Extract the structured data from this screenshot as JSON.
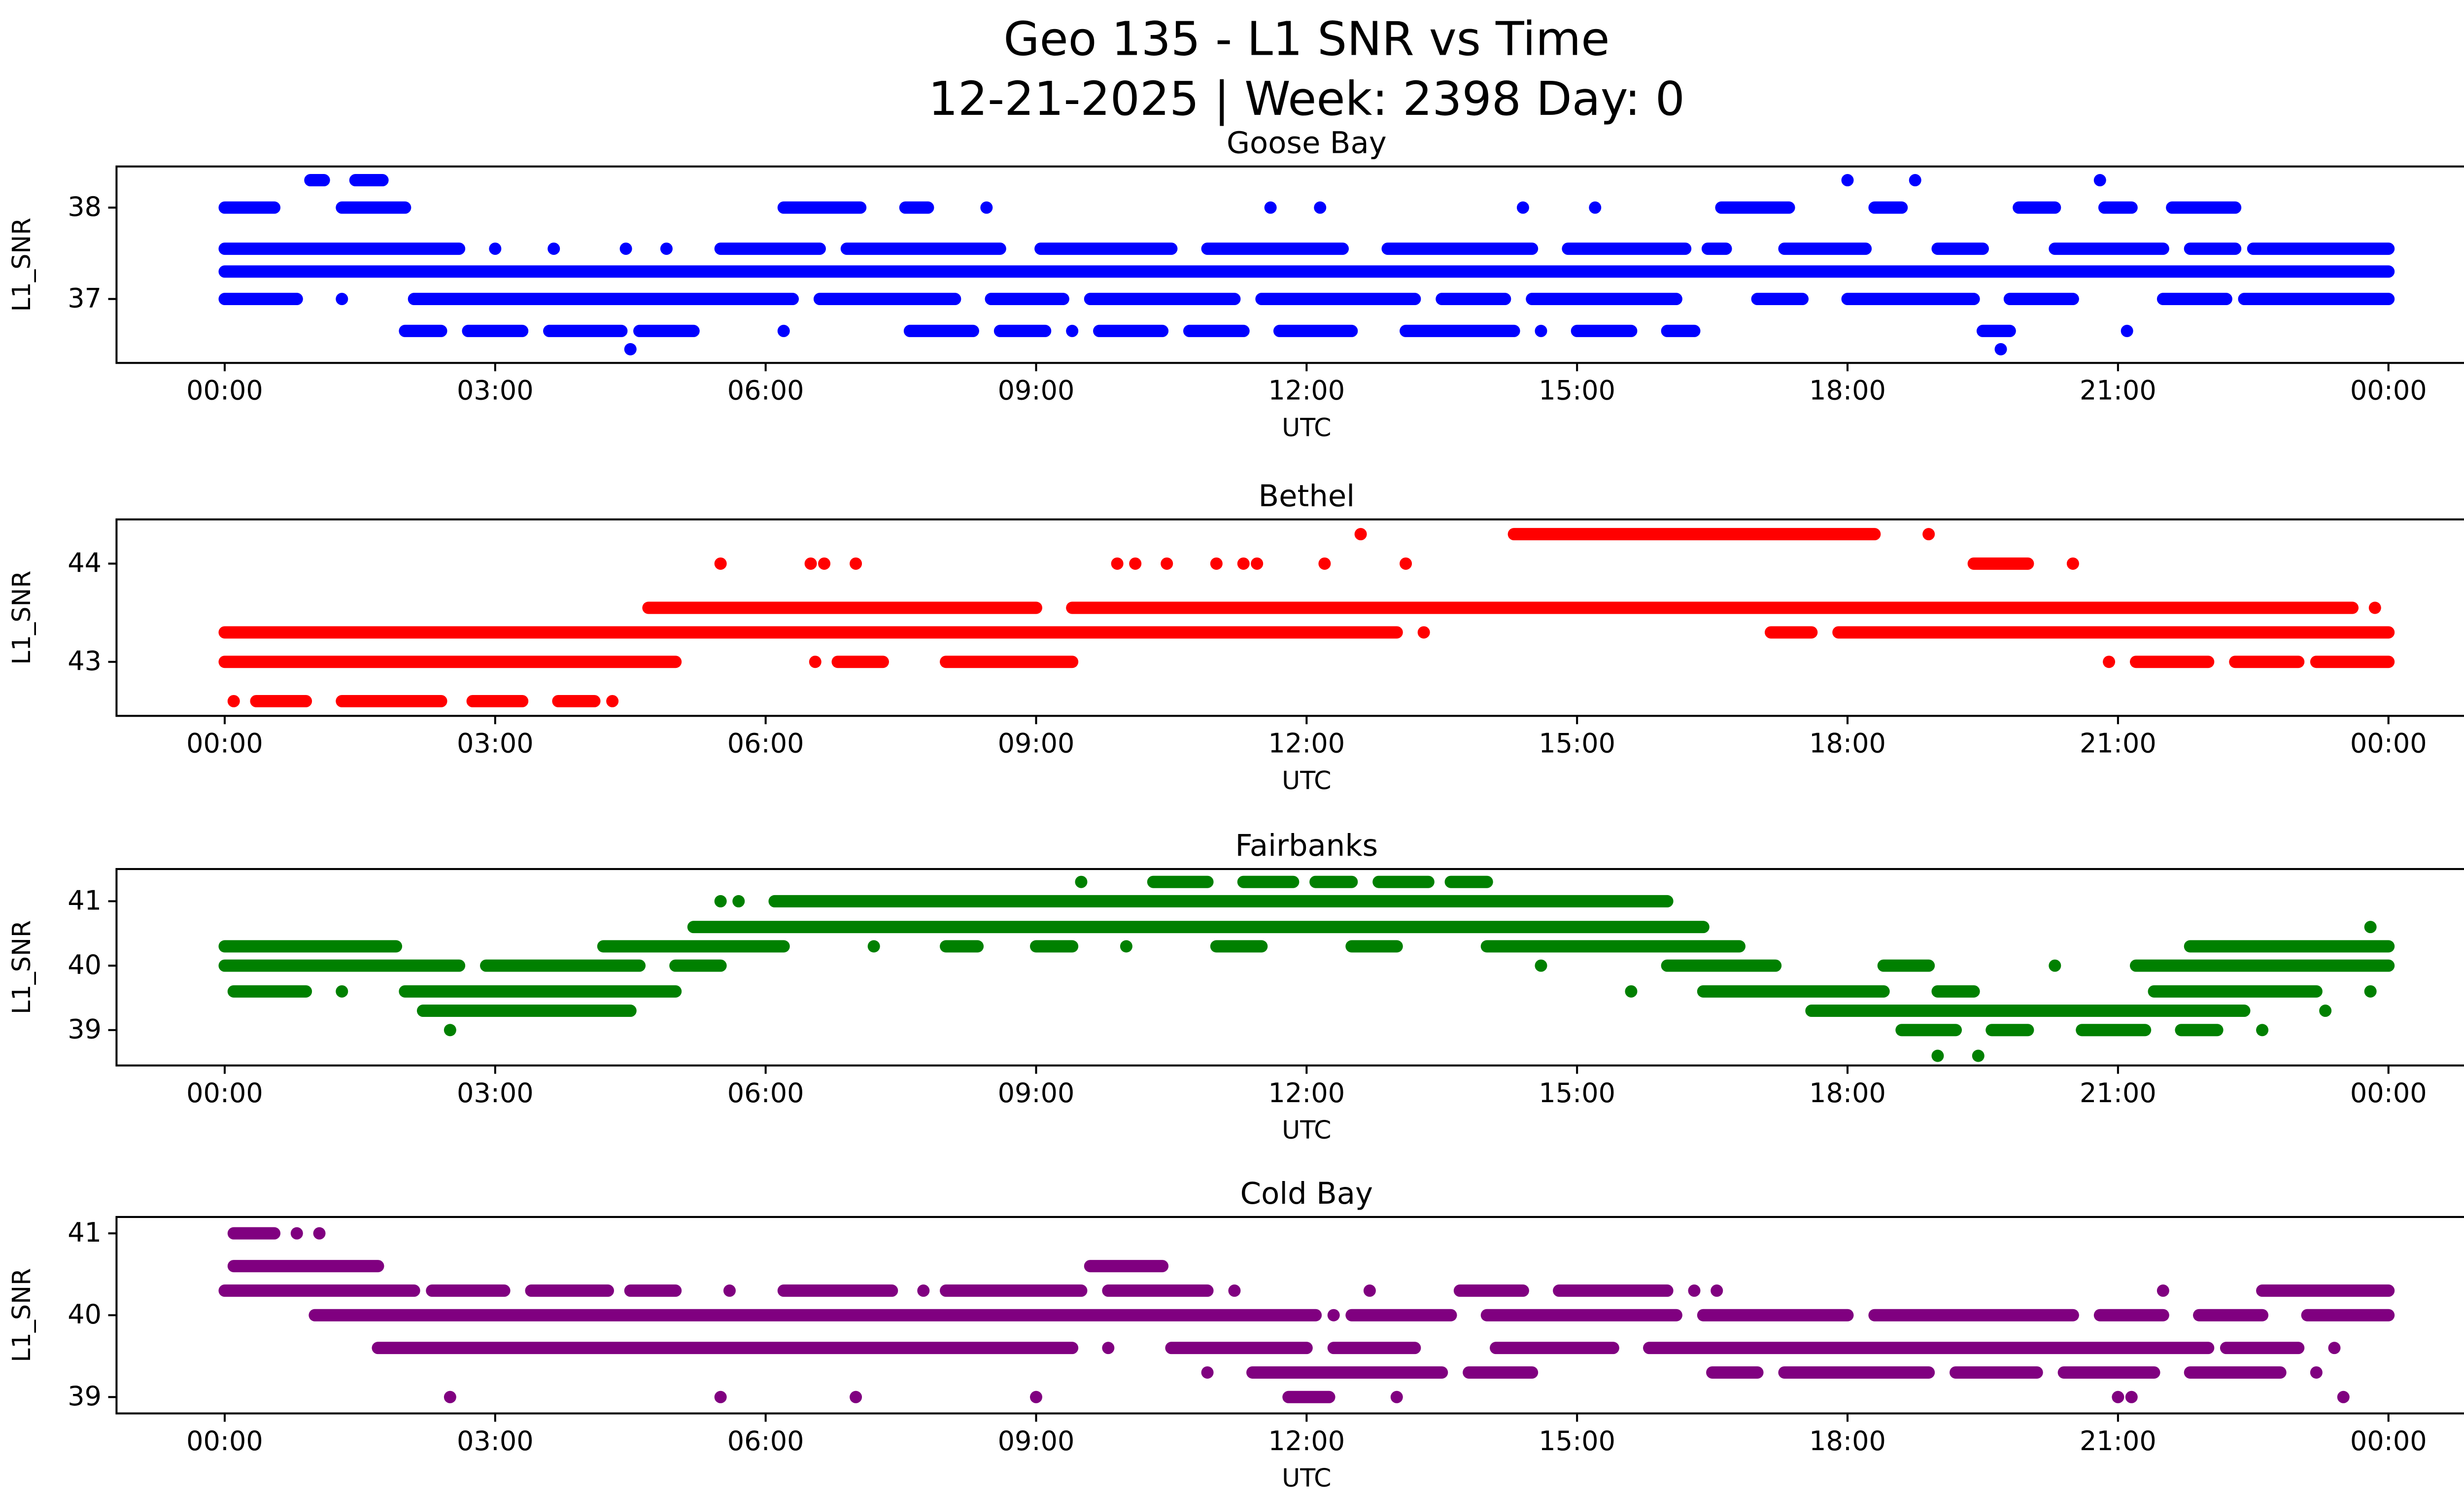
{
  "figure": {
    "title_line1": "Geo 135 - L1 SNR vs Time",
    "title_line2": "12-21-2025 | Week: 2398 Day: 0"
  },
  "chart_data": [
    {
      "type": "scatter",
      "title": "Goose Bay",
      "color": "#0000ff",
      "xlabel": "UTC",
      "ylabel": "L1_SNR",
      "xlim": [
        -1.2,
        25.2
      ],
      "ylim": [
        36.3,
        38.45
      ],
      "grid": false,
      "legend": "none",
      "xticks": {
        "hours": [
          0,
          3,
          6,
          9,
          12,
          15,
          18,
          21,
          24
        ],
        "labels": [
          "00:00",
          "03:00",
          "06:00",
          "09:00",
          "12:00",
          "15:00",
          "18:00",
          "21:00",
          "00:00"
        ]
      },
      "yticks": [
        37,
        38
      ],
      "bands": [
        {
          "y": 38.3,
          "segments": [
            [
              0.95,
              1.1
            ],
            [
              1.45,
              1.75
            ]
          ],
          "points": [
            18.0,
            18.75,
            20.8
          ]
        },
        {
          "y": 38.0,
          "segments": [
            [
              0.0,
              0.55
            ],
            [
              1.3,
              2.0
            ],
            [
              6.2,
              7.05
            ],
            [
              7.55,
              7.8
            ],
            [
              16.6,
              17.35
            ],
            [
              18.3,
              18.6
            ],
            [
              19.9,
              20.3
            ],
            [
              20.85,
              21.15
            ],
            [
              21.6,
              22.3
            ]
          ],
          "points": [
            8.45,
            11.6,
            12.15,
            14.4,
            15.2
          ]
        },
        {
          "y": 37.55,
          "segments": [
            [
              0.0,
              2.6
            ],
            [
              5.5,
              6.6
            ],
            [
              6.9,
              8.6
            ],
            [
              9.05,
              10.5
            ],
            [
              10.9,
              12.4
            ],
            [
              12.9,
              14.5
            ],
            [
              14.9,
              16.2
            ],
            [
              16.45,
              16.65
            ],
            [
              17.3,
              18.2
            ],
            [
              19.0,
              19.5
            ],
            [
              20.3,
              21.5
            ],
            [
              21.8,
              22.3
            ],
            [
              22.5,
              24.0
            ]
          ],
          "points": [
            3.0,
            3.65,
            4.45,
            4.9
          ]
        },
        {
          "y": 37.3,
          "segments": [
            [
              0.0,
              24.0
            ]
          ],
          "points": []
        },
        {
          "y": 37.0,
          "segments": [
            [
              0.0,
              0.8
            ],
            [
              2.1,
              6.3
            ],
            [
              6.6,
              8.1
            ],
            [
              8.5,
              9.3
            ],
            [
              9.6,
              11.2
            ],
            [
              11.5,
              13.2
            ],
            [
              13.5,
              14.2
            ],
            [
              14.5,
              16.1
            ],
            [
              17.0,
              17.5
            ],
            [
              18.0,
              19.4
            ],
            [
              19.8,
              20.5
            ],
            [
              21.5,
              22.2
            ],
            [
              22.4,
              24.0
            ]
          ],
          "points": [
            1.3
          ]
        },
        {
          "y": 36.65,
          "segments": [
            [
              2.0,
              2.4
            ],
            [
              2.7,
              3.3
            ],
            [
              3.6,
              4.4
            ],
            [
              4.6,
              5.2
            ],
            [
              7.6,
              8.3
            ],
            [
              8.6,
              9.1
            ],
            [
              9.7,
              10.4
            ],
            [
              10.7,
              11.3
            ],
            [
              11.7,
              12.5
            ],
            [
              13.1,
              14.3
            ],
            [
              15.0,
              15.6
            ],
            [
              16.0,
              16.3
            ],
            [
              19.5,
              19.8
            ]
          ],
          "points": [
            6.2,
            9.4,
            14.6,
            21.1
          ]
        },
        {
          "y": 36.45,
          "segments": [],
          "points": [
            4.5,
            19.7
          ]
        }
      ]
    },
    {
      "type": "scatter",
      "title": "Bethel",
      "color": "#ff0000",
      "xlabel": "UTC",
      "ylabel": "L1_SNR",
      "xlim": [
        -1.2,
        25.2
      ],
      "ylim": [
        42.45,
        44.45
      ],
      "grid": false,
      "legend": "none",
      "xticks": {
        "hours": [
          0,
          3,
          6,
          9,
          12,
          15,
          18,
          21,
          24
        ],
        "labels": [
          "00:00",
          "03:00",
          "06:00",
          "09:00",
          "12:00",
          "15:00",
          "18:00",
          "21:00",
          "00:00"
        ]
      },
      "yticks": [
        43,
        44
      ],
      "bands": [
        {
          "y": 44.3,
          "segments": [
            [
              14.3,
              18.3
            ]
          ],
          "points": [
            12.6,
            18.9
          ]
        },
        {
          "y": 44.0,
          "segments": [
            [
              19.4,
              20.0
            ]
          ],
          "points": [
            5.5,
            6.5,
            6.65,
            7.0,
            9.9,
            10.1,
            10.45,
            11.0,
            11.3,
            11.45,
            12.2,
            13.1,
            20.5
          ]
        },
        {
          "y": 43.55,
          "segments": [
            [
              4.7,
              9.0
            ],
            [
              9.4,
              23.6
            ]
          ],
          "points": [
            23.85
          ]
        },
        {
          "y": 43.3,
          "segments": [
            [
              0.0,
              13.0
            ],
            [
              17.15,
              17.6
            ],
            [
              17.9,
              24.0
            ]
          ],
          "points": [
            13.3
          ]
        },
        {
          "y": 43.0,
          "segments": [
            [
              0.0,
              5.0
            ],
            [
              6.8,
              7.3
            ],
            [
              8.0,
              9.4
            ],
            [
              21.2,
              22.0
            ],
            [
              22.3,
              23.0
            ],
            [
              23.2,
              24.0
            ]
          ],
          "points": [
            6.55,
            20.9
          ]
        },
        {
          "y": 42.6,
          "segments": [
            [
              0.35,
              0.9
            ],
            [
              1.3,
              2.4
            ],
            [
              2.75,
              3.3
            ],
            [
              3.7,
              4.1
            ]
          ],
          "points": [
            0.1,
            4.3
          ]
        }
      ]
    },
    {
      "type": "scatter",
      "title": "Fairbanks",
      "color": "#008000",
      "xlabel": "UTC",
      "ylabel": "L1_SNR",
      "xlim": [
        -1.2,
        25.2
      ],
      "ylim": [
        38.45,
        41.5
      ],
      "grid": false,
      "legend": "none",
      "xticks": {
        "hours": [
          0,
          3,
          6,
          9,
          12,
          15,
          18,
          21,
          24
        ],
        "labels": [
          "00:00",
          "03:00",
          "06:00",
          "09:00",
          "12:00",
          "15:00",
          "18:00",
          "21:00",
          "00:00"
        ]
      },
      "yticks": [
        39,
        40,
        41
      ],
      "bands": [
        {
          "y": 41.3,
          "segments": [
            [
              10.3,
              10.9
            ],
            [
              11.3,
              11.85
            ],
            [
              12.1,
              12.5
            ],
            [
              12.8,
              13.35
            ],
            [
              13.6,
              14.0
            ]
          ],
          "points": [
            9.5
          ]
        },
        {
          "y": 41.0,
          "segments": [
            [
              6.1,
              16.0
            ]
          ],
          "points": [
            5.5,
            5.7
          ]
        },
        {
          "y": 40.6,
          "segments": [
            [
              5.2,
              16.4
            ]
          ],
          "points": [
            23.8
          ]
        },
        {
          "y": 40.3,
          "segments": [
            [
              0.0,
              1.9
            ],
            [
              4.2,
              6.2
            ],
            [
              8.0,
              8.35
            ],
            [
              9.0,
              9.4
            ],
            [
              11.0,
              11.5
            ],
            [
              12.5,
              13.0
            ],
            [
              14.0,
              16.8
            ],
            [
              21.8,
              24.0
            ]
          ],
          "points": [
            7.2,
            10.0
          ]
        },
        {
          "y": 40.0,
          "segments": [
            [
              0.0,
              2.6
            ],
            [
              2.9,
              4.6
            ],
            [
              5.0,
              5.5
            ],
            [
              16.0,
              17.2
            ],
            [
              18.4,
              18.9
            ],
            [
              21.2,
              24.0
            ]
          ],
          "points": [
            14.6,
            20.3
          ]
        },
        {
          "y": 39.6,
          "segments": [
            [
              0.1,
              0.9
            ],
            [
              2.0,
              5.0
            ],
            [
              16.4,
              18.4
            ],
            [
              19.0,
              19.4
            ],
            [
              21.4,
              23.2
            ]
          ],
          "points": [
            1.3,
            15.6,
            23.8
          ]
        },
        {
          "y": 39.3,
          "segments": [
            [
              2.2,
              4.5
            ],
            [
              17.6,
              22.4
            ]
          ],
          "points": [
            23.3
          ]
        },
        {
          "y": 39.0,
          "segments": [
            [
              18.6,
              19.2
            ],
            [
              19.6,
              20.0
            ],
            [
              20.6,
              21.3
            ],
            [
              21.7,
              22.1
            ]
          ],
          "points": [
            2.5,
            22.6
          ]
        },
        {
          "y": 38.6,
          "segments": [],
          "points": [
            19.0,
            19.45
          ]
        }
      ]
    },
    {
      "type": "scatter",
      "title": "Cold Bay",
      "color": "#800080",
      "xlabel": "UTC",
      "ylabel": "L1_SNR",
      "xlim": [
        -1.2,
        25.2
      ],
      "ylim": [
        38.8,
        41.2
      ],
      "grid": false,
      "legend": "none",
      "xticks": {
        "hours": [
          0,
          3,
          6,
          9,
          12,
          15,
          18,
          21,
          24
        ],
        "labels": [
          "00:00",
          "03:00",
          "06:00",
          "09:00",
          "12:00",
          "15:00",
          "18:00",
          "21:00",
          "00:00"
        ]
      },
      "yticks": [
        39,
        40,
        41
      ],
      "bands": [
        {
          "y": 41.0,
          "segments": [
            [
              0.1,
              0.55
            ]
          ],
          "points": [
            0.8,
            1.05
          ]
        },
        {
          "y": 40.6,
          "segments": [
            [
              0.1,
              1.7
            ],
            [
              9.6,
              10.4
            ]
          ],
          "points": []
        },
        {
          "y": 40.3,
          "segments": [
            [
              0.0,
              2.1
            ],
            [
              2.3,
              3.1
            ],
            [
              3.4,
              4.25
            ],
            [
              4.5,
              5.0
            ],
            [
              6.2,
              7.4
            ],
            [
              8.0,
              9.5
            ],
            [
              9.8,
              10.9
            ],
            [
              13.7,
              14.4
            ],
            [
              14.8,
              16.0
            ],
            [
              22.6,
              24.0
            ]
          ],
          "points": [
            5.6,
            7.75,
            11.2,
            12.7,
            16.3,
            16.55,
            21.5
          ]
        },
        {
          "y": 40.0,
          "segments": [
            [
              1.0,
              12.1
            ],
            [
              12.5,
              13.6
            ],
            [
              14.0,
              16.1
            ],
            [
              16.4,
              18.0
            ],
            [
              18.3,
              20.5
            ],
            [
              20.8,
              21.5
            ],
            [
              21.9,
              22.6
            ],
            [
              23.1,
              24.0
            ]
          ],
          "points": [
            12.3
          ]
        },
        {
          "y": 39.6,
          "segments": [
            [
              1.7,
              9.4
            ],
            [
              10.5,
              12.0
            ],
            [
              12.3,
              13.2
            ],
            [
              14.1,
              15.4
            ],
            [
              15.8,
              22.0
            ],
            [
              22.2,
              23.0
            ]
          ],
          "points": [
            9.8,
            23.4
          ]
        },
        {
          "y": 39.3,
          "segments": [
            [
              11.4,
              13.5
            ],
            [
              13.8,
              14.5
            ],
            [
              16.5,
              17.0
            ],
            [
              17.3,
              18.9
            ],
            [
              19.2,
              20.1
            ],
            [
              20.4,
              21.4
            ],
            [
              21.8,
              22.8
            ]
          ],
          "points": [
            10.9,
            23.2
          ]
        },
        {
          "y": 39.0,
          "segments": [
            [
              11.8,
              12.25
            ]
          ],
          "points": [
            2.5,
            5.5,
            7.0,
            9.0,
            13.0,
            21.0,
            21.15,
            23.5
          ]
        }
      ]
    }
  ]
}
